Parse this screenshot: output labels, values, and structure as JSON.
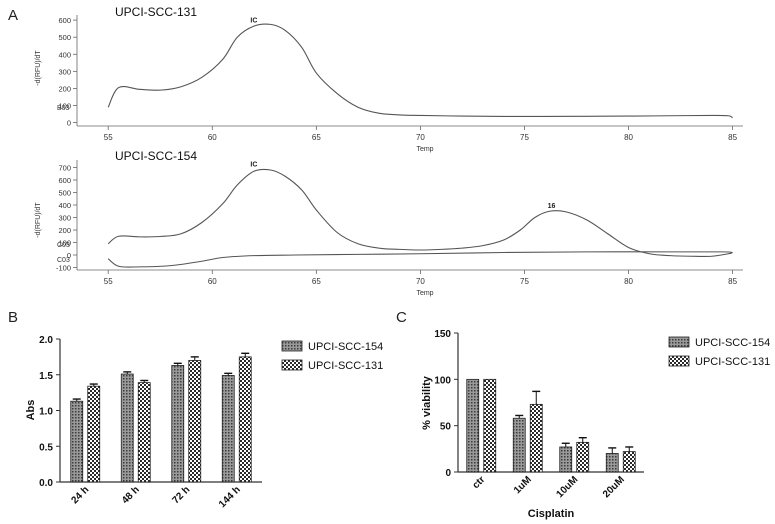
{
  "colors": {
    "curve": "#555555",
    "axis": "#333333",
    "bar_fill": "#8a8a8a",
    "bar_stroke": "#222222",
    "text": "#111111"
  },
  "chart_data": [
    {
      "id": "A1",
      "type": "line",
      "panel_label": "A",
      "title": "UPCI-SCC-131",
      "xlabel": "Temp",
      "ylabel": "-d(RFU)/dT",
      "xlim": [
        53.5,
        85.5
      ],
      "ylim": [
        -20,
        630
      ],
      "xticks": [
        55,
        60,
        65,
        70,
        75,
        80,
        85
      ],
      "yticks": [
        0,
        100,
        200,
        300,
        400,
        500,
        600
      ],
      "series": [
        {
          "name": "B03",
          "x": [
            55,
            55.5,
            56.5,
            57.5,
            58.5,
            59.5,
            60.5,
            61.2,
            62,
            62.8,
            63.5,
            64.3,
            65,
            66,
            67,
            68,
            69,
            70,
            72,
            74,
            76,
            78,
            80,
            82,
            84,
            84.8,
            85
          ],
          "y": [
            90,
            205,
            195,
            190,
            210,
            265,
            370,
            500,
            565,
            575,
            540,
            440,
            290,
            170,
            90,
            55,
            45,
            42,
            38,
            36,
            36,
            37,
            38,
            40,
            42,
            40,
            28
          ]
        }
      ],
      "annotations": [
        {
          "text": "IC",
          "x": 62,
          "y": 585
        }
      ]
    },
    {
      "id": "A2",
      "type": "line",
      "title": "UPCI-SCC-154",
      "xlabel": "Temp",
      "ylabel": "-d(RFU)/dT",
      "xlim": [
        53.5,
        85.5
      ],
      "ylim": [
        -120,
        760
      ],
      "xticks": [
        55,
        60,
        65,
        70,
        75,
        80,
        85
      ],
      "yticks": [
        -100,
        0,
        100,
        200,
        300,
        400,
        500,
        600,
        700
      ],
      "series": [
        {
          "name": "C03",
          "x": [
            55,
            55.5,
            56.5,
            57.5,
            58.5,
            59.5,
            60.5,
            61.2,
            62,
            62.8,
            63.5,
            64.3,
            65,
            66,
            67,
            68,
            69,
            70,
            71,
            72,
            73,
            74,
            74.8,
            75.5,
            76.2,
            77,
            78,
            79,
            80,
            81,
            82,
            83,
            84,
            84.8,
            85
          ],
          "y": [
            90,
            150,
            145,
            148,
            170,
            260,
            410,
            560,
            670,
            680,
            630,
            520,
            360,
            180,
            90,
            55,
            45,
            40,
            45,
            55,
            75,
            120,
            200,
            300,
            350,
            345,
            280,
            170,
            60,
            10,
            -5,
            -10,
            -10,
            10,
            20
          ]
        },
        {
          "name": "C03",
          "x": [
            55,
            55.5,
            56.5,
            58,
            59.5,
            60.5,
            62,
            64,
            67,
            70,
            74,
            78,
            82,
            84.5,
            85
          ],
          "y": [
            -30,
            -90,
            -95,
            -85,
            -50,
            -20,
            -5,
            0,
            5,
            10,
            20,
            25,
            25,
            25,
            20
          ]
        }
      ],
      "annotations": [
        {
          "text": "IC",
          "x": 62,
          "y": 710
        },
        {
          "text": "16",
          "x": 76.3,
          "y": 375
        }
      ]
    },
    {
      "id": "B",
      "type": "bar",
      "panel_label": "B",
      "title": "",
      "xlabel": "",
      "ylabel": "Abs",
      "ylim": [
        0,
        2.0
      ],
      "yticks": [
        0,
        0.5,
        1.0,
        1.5,
        2.0
      ],
      "ytick_labels": [
        "0.0",
        "0.5",
        "1.0",
        "1.5",
        "2.0"
      ],
      "categories": [
        "24 h",
        "48 h",
        "72 h",
        "144 h"
      ],
      "series": [
        {
          "name": "UPCI-SCC-154",
          "values": [
            1.13,
            1.51,
            1.63,
            1.49
          ],
          "errors": [
            0.03,
            0.03,
            0.03,
            0.03
          ]
        },
        {
          "name": "UPCI-SCC-131",
          "values": [
            1.34,
            1.39,
            1.7,
            1.75
          ],
          "errors": [
            0.03,
            0.03,
            0.05,
            0.05
          ]
        }
      ],
      "legend": "right"
    },
    {
      "id": "C",
      "type": "bar",
      "panel_label": "C",
      "title": "",
      "xlabel": "Cisplatin",
      "ylabel": "% viability",
      "ylim": [
        0,
        150
      ],
      "yticks": [
        0,
        50,
        100,
        150
      ],
      "ytick_labels": [
        "0",
        "50",
        "100",
        "150"
      ],
      "categories": [
        "ctr",
        "1uM",
        "10uM",
        "20uM"
      ],
      "series": [
        {
          "name": "UPCI-SCC-154",
          "values": [
            100,
            58,
            27,
            20
          ],
          "errors": [
            0,
            3,
            4,
            6
          ]
        },
        {
          "name": "UPCI-SCC-131",
          "values": [
            100,
            73,
            32,
            22
          ],
          "errors": [
            0,
            14,
            5,
            5
          ]
        }
      ],
      "legend": "top-right"
    }
  ]
}
